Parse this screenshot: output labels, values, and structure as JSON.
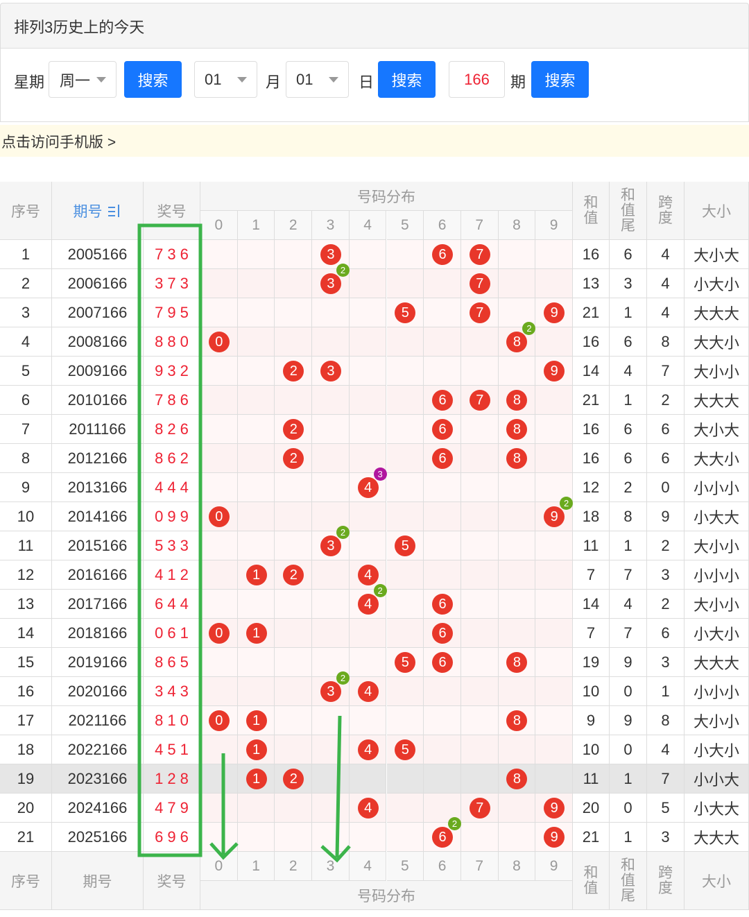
{
  "header": {
    "title": "排列3历史上的今天"
  },
  "search": {
    "week_label": "星期",
    "week_value": "周一",
    "month_value": "01",
    "month_label": "月",
    "day_value": "01",
    "day_label": "日",
    "period_value": "166",
    "period_label": "期",
    "buttons": [
      "搜索",
      "搜索",
      "搜索"
    ]
  },
  "banner": "点击访问手机版 >",
  "table": {
    "headers": {
      "index": "序号",
      "issue": "期号",
      "draw": "奖号",
      "dist": "号码分布",
      "sum": "和值",
      "tail": "和值尾",
      "span": "跨度",
      "size": "大小"
    },
    "digits": [
      "0",
      "1",
      "2",
      "3",
      "4",
      "5",
      "6",
      "7",
      "8",
      "9"
    ],
    "rows": [
      {
        "index": "1",
        "issue": "2005166",
        "draw": "736",
        "balls": [
          {
            "n": "3"
          },
          {
            "n": "6"
          },
          {
            "n": "7"
          }
        ],
        "sum": "16",
        "tail": "6",
        "span": "4",
        "size": "大小大"
      },
      {
        "index": "2",
        "issue": "2006166",
        "draw": "373",
        "balls": [
          {
            "n": "3",
            "badge": "2"
          },
          {
            "n": "7"
          }
        ],
        "sum": "13",
        "tail": "3",
        "span": "4",
        "size": "小大小"
      },
      {
        "index": "3",
        "issue": "2007166",
        "draw": "795",
        "balls": [
          {
            "n": "5"
          },
          {
            "n": "7"
          },
          {
            "n": "9"
          }
        ],
        "sum": "21",
        "tail": "1",
        "span": "4",
        "size": "大大大"
      },
      {
        "index": "4",
        "issue": "2008166",
        "draw": "880",
        "balls": [
          {
            "n": "0"
          },
          {
            "n": "8",
            "badge": "2"
          }
        ],
        "sum": "16",
        "tail": "6",
        "span": "8",
        "size": "大大小"
      },
      {
        "index": "5",
        "issue": "2009166",
        "draw": "932",
        "balls": [
          {
            "n": "2"
          },
          {
            "n": "3"
          },
          {
            "n": "9"
          }
        ],
        "sum": "14",
        "tail": "4",
        "span": "7",
        "size": "大小小"
      },
      {
        "index": "6",
        "issue": "2010166",
        "draw": "786",
        "balls": [
          {
            "n": "6"
          },
          {
            "n": "7"
          },
          {
            "n": "8"
          }
        ],
        "sum": "21",
        "tail": "1",
        "span": "2",
        "size": "大大大"
      },
      {
        "index": "7",
        "issue": "2011166",
        "draw": "826",
        "balls": [
          {
            "n": "2"
          },
          {
            "n": "6"
          },
          {
            "n": "8"
          }
        ],
        "sum": "16",
        "tail": "6",
        "span": "6",
        "size": "大小大"
      },
      {
        "index": "8",
        "issue": "2012166",
        "draw": "862",
        "balls": [
          {
            "n": "2"
          },
          {
            "n": "6"
          },
          {
            "n": "8"
          }
        ],
        "sum": "16",
        "tail": "6",
        "span": "6",
        "size": "大大小"
      },
      {
        "index": "9",
        "issue": "2013166",
        "draw": "444",
        "balls": [
          {
            "n": "4",
            "badge": "3"
          }
        ],
        "sum": "12",
        "tail": "2",
        "span": "0",
        "size": "小小小"
      },
      {
        "index": "10",
        "issue": "2014166",
        "draw": "099",
        "balls": [
          {
            "n": "0"
          },
          {
            "n": "9",
            "badge": "2"
          }
        ],
        "sum": "18",
        "tail": "8",
        "span": "9",
        "size": "小大大"
      },
      {
        "index": "11",
        "issue": "2015166",
        "draw": "533",
        "balls": [
          {
            "n": "3",
            "badge": "2"
          },
          {
            "n": "5"
          }
        ],
        "sum": "11",
        "tail": "1",
        "span": "2",
        "size": "大小小"
      },
      {
        "index": "12",
        "issue": "2016166",
        "draw": "412",
        "balls": [
          {
            "n": "1"
          },
          {
            "n": "2"
          },
          {
            "n": "4"
          }
        ],
        "sum": "7",
        "tail": "7",
        "span": "3",
        "size": "小小小"
      },
      {
        "index": "13",
        "issue": "2017166",
        "draw": "644",
        "balls": [
          {
            "n": "4",
            "badge": "2"
          },
          {
            "n": "6"
          }
        ],
        "sum": "14",
        "tail": "4",
        "span": "2",
        "size": "大小小"
      },
      {
        "index": "14",
        "issue": "2018166",
        "draw": "061",
        "balls": [
          {
            "n": "0"
          },
          {
            "n": "1"
          },
          {
            "n": "6"
          }
        ],
        "sum": "7",
        "tail": "7",
        "span": "6",
        "size": "小大小"
      },
      {
        "index": "15",
        "issue": "2019166",
        "draw": "865",
        "balls": [
          {
            "n": "5"
          },
          {
            "n": "6"
          },
          {
            "n": "8"
          }
        ],
        "sum": "19",
        "tail": "9",
        "span": "3",
        "size": "大大大"
      },
      {
        "index": "16",
        "issue": "2020166",
        "draw": "343",
        "balls": [
          {
            "n": "3",
            "badge": "2"
          },
          {
            "n": "4"
          }
        ],
        "sum": "10",
        "tail": "0",
        "span": "1",
        "size": "小小小"
      },
      {
        "index": "17",
        "issue": "2021166",
        "draw": "810",
        "balls": [
          {
            "n": "0"
          },
          {
            "n": "1"
          },
          {
            "n": "8"
          }
        ],
        "sum": "9",
        "tail": "9",
        "span": "8",
        "size": "大小小"
      },
      {
        "index": "18",
        "issue": "2022166",
        "draw": "451",
        "balls": [
          {
            "n": "1"
          },
          {
            "n": "4"
          },
          {
            "n": "5"
          }
        ],
        "sum": "10",
        "tail": "0",
        "span": "4",
        "size": "小大小"
      },
      {
        "index": "19",
        "issue": "2023166",
        "draw": "128",
        "balls": [
          {
            "n": "1"
          },
          {
            "n": "2"
          },
          {
            "n": "8"
          }
        ],
        "sum": "11",
        "tail": "1",
        "span": "7",
        "size": "小小大",
        "highlight": true
      },
      {
        "index": "20",
        "issue": "2024166",
        "draw": "479",
        "balls": [
          {
            "n": "4"
          },
          {
            "n": "7"
          },
          {
            "n": "9"
          }
        ],
        "sum": "20",
        "tail": "0",
        "span": "5",
        "size": "小大大"
      },
      {
        "index": "21",
        "issue": "2025166",
        "draw": "696",
        "balls": [
          {
            "n": "6",
            "badge": "2"
          },
          {
            "n": "9"
          }
        ],
        "sum": "21",
        "tail": "1",
        "span": "3",
        "size": "大大大"
      }
    ],
    "footer": {
      "headers": {
        "index": "序号",
        "issue": "期号",
        "draw": "奖号",
        "dist": "号码分布",
        "sum": "和值",
        "tail": "和值尾",
        "span": "跨度",
        "size": "大小"
      },
      "digits": [
        "0",
        "1",
        "2",
        "3",
        "4",
        "5",
        "6",
        "7",
        "8",
        "9"
      ]
    }
  }
}
